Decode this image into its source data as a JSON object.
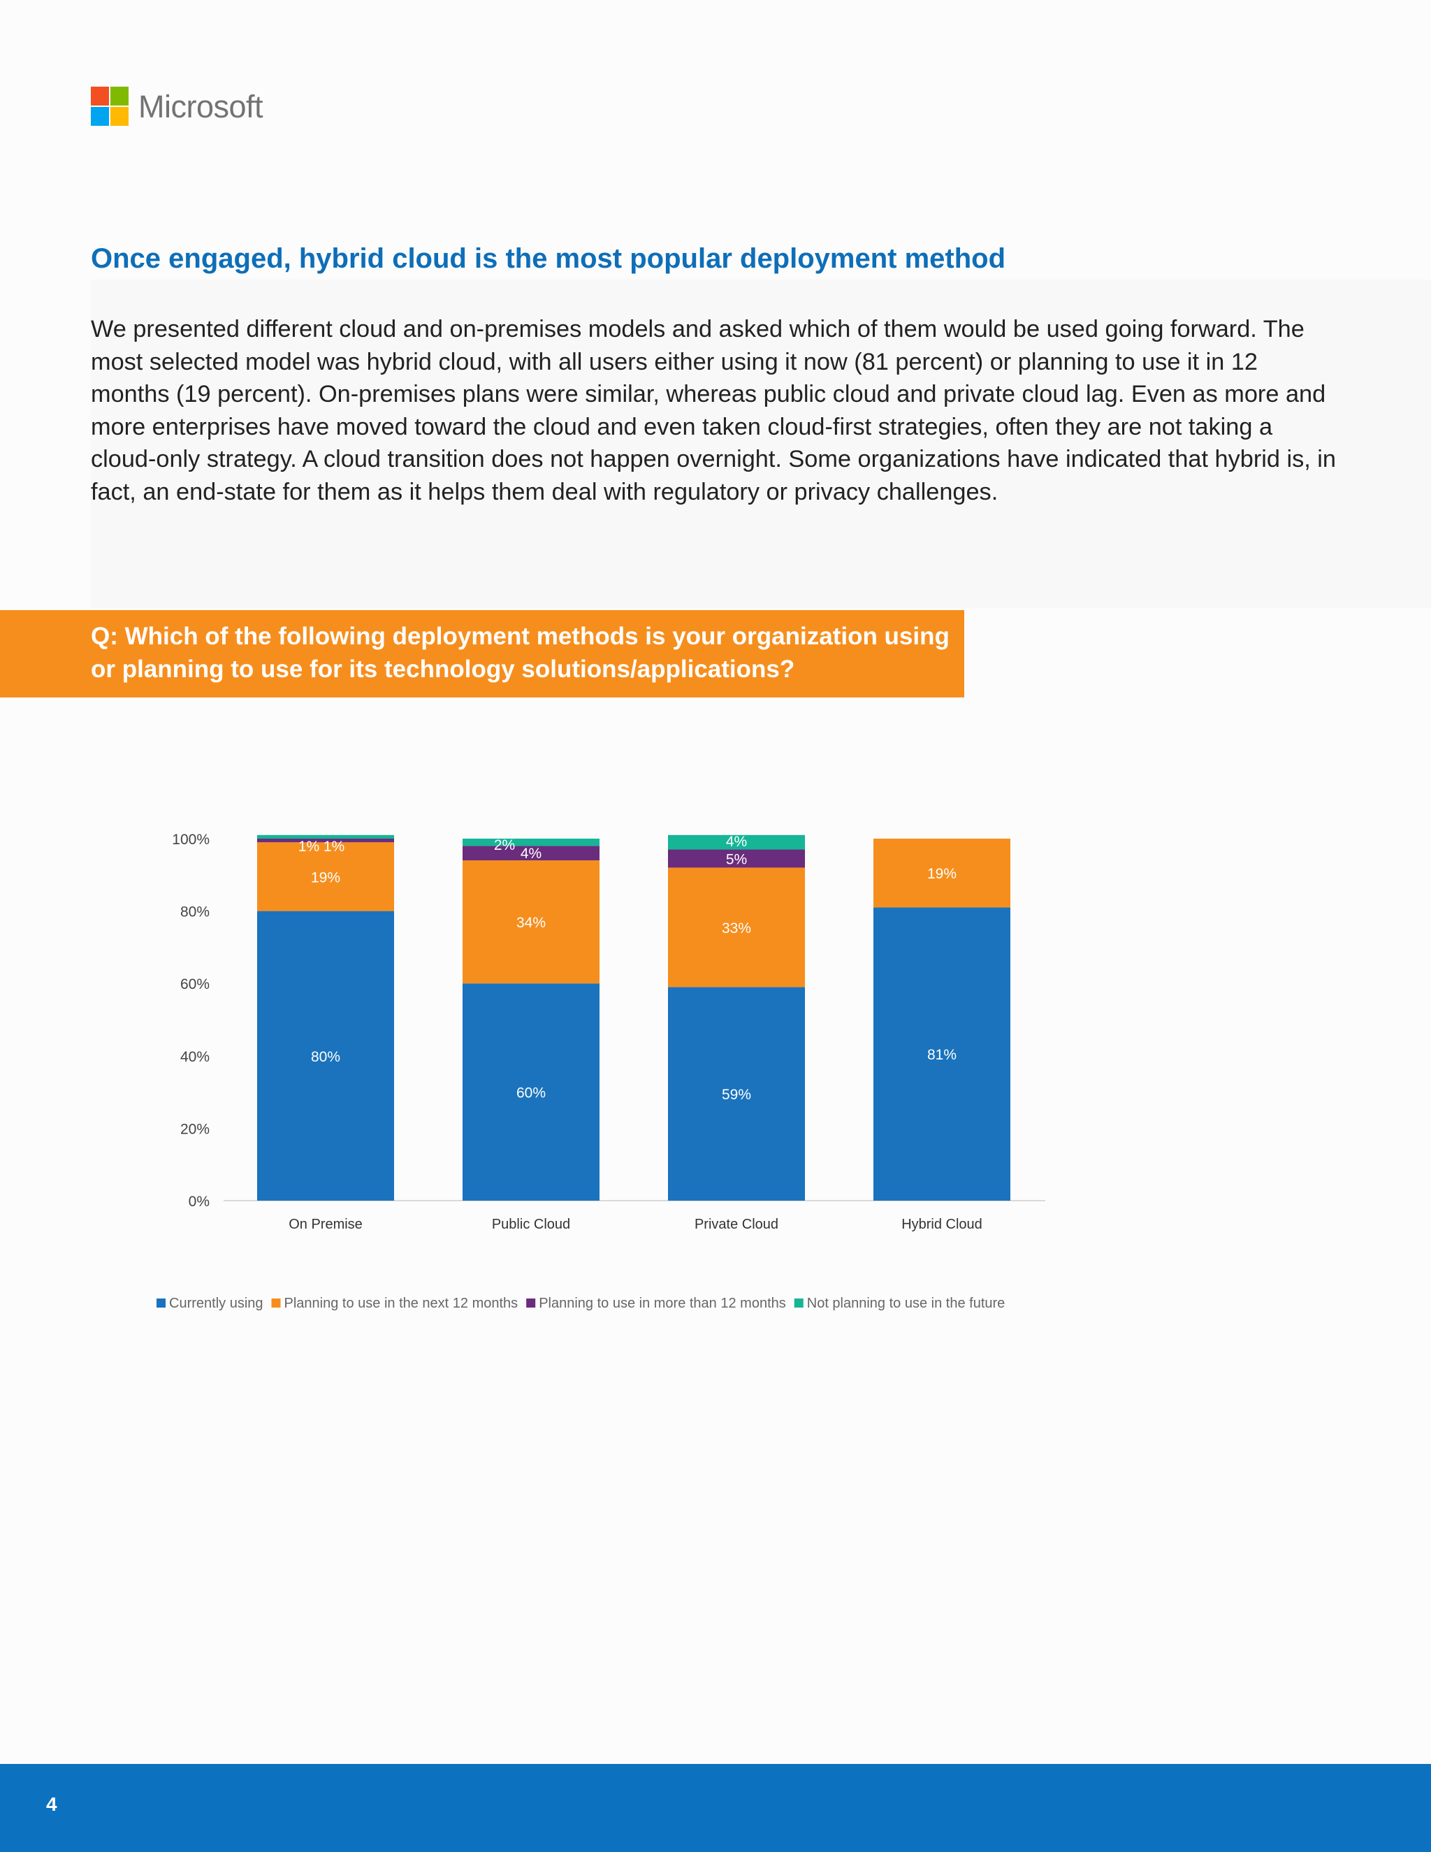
{
  "brand": {
    "name": "Microsoft",
    "logo_colors": [
      "#f25022",
      "#7fba00",
      "#00a4ef",
      "#ffb900"
    ]
  },
  "heading": "Once engaged, hybrid cloud is the most popular deployment method",
  "body": "We presented different cloud and on-premises models and asked which of them would be used going forward. The most selected model was hybrid cloud, with all users either using it now (81 percent) or planning to use it in 12 months (19 percent). On-premises plans were similar, whereas public cloud and private cloud lag. Even as more and more enterprises have moved toward the cloud and even taken cloud-first strategies, often they are not taking a cloud-only strategy. A cloud transition does not happen overnight. Some organizations have indicated that hybrid is, in fact, an end-state for them as it helps them deal with regulatory or privacy challenges.",
  "question": "Q: Which of the following deployment methods is your organization using or planning to use for its technology solutions/applications?",
  "chart_data": {
    "type": "bar",
    "stacked": true,
    "categories": [
      "On Premise",
      "Public Cloud",
      "Private Cloud",
      "Hybrid Cloud"
    ],
    "series": [
      {
        "name": "Currently using",
        "values": [
          80,
          60,
          59,
          81
        ],
        "labels": [
          "80%",
          "60%",
          "59%",
          "81%"
        ],
        "color": "#1a73bc"
      },
      {
        "name": "Planning to use in the next 12 months",
        "values": [
          19,
          34,
          33,
          19
        ],
        "labels": [
          "19%",
          "34%",
          "33%",
          "19%"
        ],
        "color": "#f68e1e"
      },
      {
        "name": "Planning to use in more than 12 months",
        "values": [
          1,
          4,
          5,
          0
        ],
        "labels": [
          "1%",
          "4%",
          "5%",
          ""
        ],
        "color": "#6a2c7c"
      },
      {
        "name": "Not planning to use in the future",
        "values": [
          1,
          2,
          4,
          0
        ],
        "labels": [
          "1%",
          "2%",
          "4%",
          ""
        ],
        "color": "#15b596"
      }
    ],
    "y_ticks": [
      "0%",
      "20%",
      "40%",
      "60%",
      "80%",
      "100%"
    ],
    "ylim": [
      0,
      100
    ],
    "legend_position": "bottom",
    "grid": false
  },
  "footer": {
    "page_number": "4",
    "color": "#0c72bf"
  }
}
